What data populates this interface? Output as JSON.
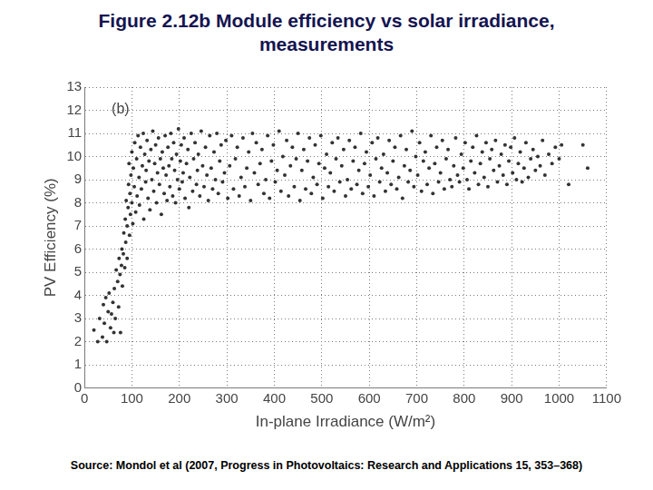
{
  "chart_data": {
    "type": "scatter",
    "title": "Figure 2.12b Module efficiency vs solar irradiance, measurements",
    "x_label": "In-plane Irradiance (W/m²)",
    "y_label": "PV Efficiency (%)",
    "annotations": [
      "(b)"
    ],
    "source": "Source: Mondol et al (2007, Progress in Photovoltaics: Research and Applications 15, 353–368)",
    "color": "#333333",
    "marker": "circle",
    "grid": true,
    "xlim": [
      0,
      1100
    ],
    "xticks": [
      0,
      100,
      200,
      300,
      400,
      500,
      600,
      700,
      800,
      900,
      1000,
      1100
    ],
    "ylim": [
      0,
      13
    ],
    "yticks": [
      0,
      1,
      2,
      3,
      4,
      5,
      6,
      7,
      8,
      9,
      10,
      11,
      12,
      13
    ],
    "x": [
      20,
      28,
      32,
      38,
      40,
      42,
      45,
      47,
      50,
      52,
      55,
      57,
      60,
      62,
      63,
      65,
      67,
      70,
      72,
      73,
      75,
      76,
      78,
      79,
      80,
      82,
      83,
      85,
      86,
      87,
      88,
      90,
      90,
      92,
      93,
      94,
      95,
      96,
      97,
      98,
      100,
      100,
      102,
      103,
      105,
      106,
      108,
      110,
      111,
      113,
      115,
      116,
      118,
      120,
      122,
      124,
      125,
      127,
      129,
      130,
      132,
      134,
      136,
      138,
      140,
      142,
      144,
      146,
      148,
      150,
      152,
      154,
      156,
      158,
      160,
      162,
      164,
      166,
      168,
      170,
      172,
      174,
      176,
      178,
      180,
      182,
      184,
      186,
      188,
      190,
      192,
      194,
      196,
      198,
      200,
      202,
      204,
      206,
      208,
      210,
      212,
      215,
      218,
      220,
      222,
      225,
      228,
      230,
      233,
      236,
      238,
      240,
      243,
      246,
      249,
      252,
      255,
      258,
      261,
      264,
      267,
      270,
      273,
      276,
      279,
      282,
      285,
      288,
      291,
      295,
      298,
      302,
      306,
      310,
      314,
      318,
      322,
      326,
      330,
      334,
      338,
      342,
      346,
      350,
      354,
      358,
      362,
      366,
      370,
      374,
      378,
      382,
      386,
      390,
      394,
      398,
      402,
      406,
      410,
      414,
      418,
      422,
      426,
      430,
      434,
      438,
      442,
      446,
      450,
      454,
      458,
      462,
      466,
      470,
      474,
      478,
      482,
      486,
      490,
      494,
      498,
      502,
      506,
      510,
      514,
      518,
      522,
      526,
      530,
      534,
      538,
      542,
      546,
      550,
      554,
      558,
      562,
      566,
      570,
      574,
      578,
      582,
      586,
      590,
      594,
      598,
      602,
      606,
      610,
      614,
      618,
      622,
      626,
      630,
      634,
      638,
      642,
      646,
      650,
      654,
      658,
      662,
      666,
      670,
      674,
      678,
      682,
      686,
      690,
      694,
      698,
      702,
      706,
      710,
      714,
      718,
      722,
      726,
      730,
      734,
      738,
      742,
      746,
      750,
      754,
      758,
      762,
      766,
      770,
      774,
      778,
      782,
      786,
      790,
      794,
      798,
      802,
      806,
      810,
      814,
      818,
      822,
      826,
      830,
      834,
      838,
      842,
      846,
      850,
      854,
      858,
      862,
      866,
      870,
      874,
      878,
      882,
      886,
      890,
      894,
      898,
      902,
      906,
      910,
      914,
      918,
      922,
      926,
      930,
      935,
      940,
      945,
      950,
      955,
      960,
      965,
      970,
      978,
      985,
      992,
      1000,
      1005,
      1020,
      1050,
      1060
    ],
    "values": [
      2.5,
      2.0,
      3.0,
      2.2,
      3.6,
      2.8,
      3.9,
      2.0,
      3.3,
      4.1,
      2.6,
      3.2,
      3.7,
      2.4,
      4.3,
      3.0,
      5.1,
      4.6,
      3.5,
      5.6,
      4.9,
      2.4,
      5.3,
      6.0,
      4.4,
      5.8,
      6.7,
      5.2,
      7.3,
      6.3,
      8.1,
      7.0,
      5.6,
      7.8,
      8.8,
      9.7,
      6.6,
      8.4,
      7.5,
      9.2,
      8.0,
      10.2,
      7.1,
      9.5,
      8.7,
      10.6,
      7.6,
      9.9,
      8.3,
      10.9,
      9.1,
      7.9,
      10.4,
      8.6,
      9.6,
      11.0,
      7.3,
      10.1,
      8.9,
      9.4,
      10.7,
      8.2,
      9.8,
      7.7,
      10.3,
      9.0,
      11.1,
      8.5,
      9.7,
      10.5,
      8.0,
      9.3,
      10.8,
      8.8,
      9.9,
      7.5,
      10.2,
      9.5,
      8.4,
      10.9,
      9.2,
      8.1,
      10.4,
      9.6,
      8.7,
      11.0,
      9.9,
      8.3,
      10.6,
      9.4,
      8.0,
      10.1,
      9.0,
      11.2,
      8.6,
      9.8,
      10.5,
      8.9,
      9.3,
      10.8,
      8.2,
      9.7,
      10.3,
      7.8,
      9.1,
      11.0,
      8.5,
      9.9,
      10.6,
      8.8,
      9.4,
      10.1,
      8.3,
      11.1,
      9.6,
      8.7,
      10.4,
      9.2,
      8.1,
      10.9,
      9.5,
      8.6,
      10.2,
      9.0,
      11.0,
      8.4,
      9.8,
      10.5,
      8.9,
      9.3,
      10.7,
      8.2,
      9.6,
      10.9,
      8.6,
      9.9,
      10.4,
      8.3,
      9.1,
      10.8,
      8.7,
      9.5,
      10.2,
      8.1,
      11.0,
      9.3,
      10.6,
      8.8,
      9.7,
      10.3,
      8.4,
      9.0,
      10.9,
      8.2,
      9.8,
      10.5,
      8.9,
      9.4,
      11.1,
      8.5,
      10.0,
      9.2,
      10.7,
      8.3,
      9.6,
      10.4,
      8.7,
      9.9,
      11.0,
      8.1,
      9.4,
      10.3,
      8.6,
      9.8,
      10.8,
      8.4,
      9.1,
      10.5,
      8.8,
      9.7,
      10.9,
      8.2,
      9.5,
      10.1,
      8.7,
      9.3,
      10.6,
      8.5,
      9.9,
      10.8,
      8.9,
      9.6,
      10.3,
      8.3,
      9.0,
      10.7,
      8.6,
      9.8,
      10.4,
      8.8,
      9.4,
      11.0,
      8.4,
      9.7,
      10.2,
      8.7,
      9.2,
      10.6,
      8.3,
      9.9,
      10.8,
      8.9,
      9.5,
      10.1,
      8.5,
      9.3,
      10.7,
      8.8,
      9.8,
      10.4,
      8.6,
      9.1,
      10.9,
      8.2,
      9.6,
      10.3,
      8.9,
      9.4,
      11.1,
      8.7,
      10.0,
      9.2,
      10.6,
      8.5,
      9.8,
      10.2,
      8.8,
      9.5,
      10.9,
      8.4,
      9.7,
      10.4,
      8.9,
      9.3,
      10.7,
      8.6,
      9.9,
      10.3,
      9.0,
      8.7,
      9.6,
      10.8,
      9.2,
      8.9,
      10.1,
      9.5,
      10.6,
      9.0,
      8.6,
      9.8,
      10.4,
      9.3,
      10.9,
      8.8,
      9.7,
      10.2,
      9.1,
      10.6,
      8.7,
      9.9,
      10.3,
      9.4,
      10.7,
      8.9,
      9.6,
      10.1,
      9.2,
      10.5,
      8.8,
      9.8,
      10.4,
      9.3,
      10.8,
      9.0,
      9.7,
      10.2,
      8.9,
      9.5,
      10.6,
      9.1,
      9.9,
      10.3,
      9.4,
      10.0,
      9.6,
      10.7,
      9.2,
      10.1,
      9.7,
      10.4,
      9.9,
      10.5,
      8.8,
      10.5,
      9.5
    ]
  }
}
